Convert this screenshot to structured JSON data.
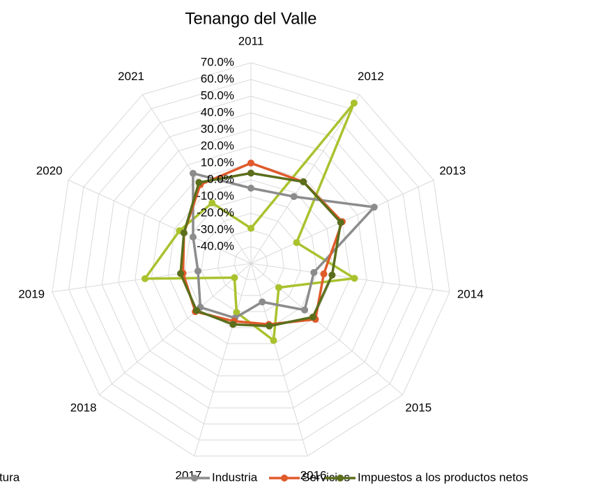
{
  "chart_data": {
    "type": "radar",
    "title": "Tenango del Valle",
    "categories": [
      "2011",
      "2012",
      "2013",
      "2014",
      "2015",
      "2016",
      "2017",
      "2018",
      "2019",
      "2020",
      "2021"
    ],
    "ylim": [
      -50,
      70
    ],
    "yticks": [
      {
        "value": -40,
        "label": "-40.0%"
      },
      {
        "value": -30,
        "label": "-30.0%"
      },
      {
        "value": -20,
        "label": "-20.0%"
      },
      {
        "value": -10,
        "label": "-10.0%"
      },
      {
        "value": 0,
        "label": "0.0%"
      },
      {
        "value": 10,
        "label": "10.0%"
      },
      {
        "value": 20,
        "label": "20.0%"
      },
      {
        "value": 30,
        "label": "30.0%"
      },
      {
        "value": 40,
        "label": "40.0%"
      },
      {
        "value": 50,
        "label": "50.0%"
      },
      {
        "value": 60,
        "label": "60.0%"
      },
      {
        "value": 70,
        "label": "70.0%"
      }
    ],
    "grid": true,
    "legend": "bottom",
    "series": [
      {
        "name": "Agricultura",
        "color": "#a9c22e",
        "values": [
          -29,
          64,
          -20,
          12.5,
          -28,
          -2,
          -19.5,
          -37,
          14,
          -3,
          -7
        ]
      },
      {
        "name": "Industria",
        "color": "#8c8c8c",
        "values": [
          -5,
          -2.5,
          31,
          -12,
          -7.5,
          -26,
          -16,
          -10,
          -18,
          -12,
          14
        ]
      },
      {
        "name": "Servicios",
        "color": "#e05a2b",
        "values": [
          10,
          8,
          10,
          -6,
          1,
          -12,
          -14,
          -6,
          -9,
          -6,
          6
        ]
      },
      {
        "name": "Impuestos a los productos netos",
        "color": "#5b6e1c",
        "values": [
          4,
          8,
          9,
          -1,
          -1,
          -11,
          -12,
          -7,
          -7.5,
          -6,
          7.5
        ]
      }
    ]
  }
}
